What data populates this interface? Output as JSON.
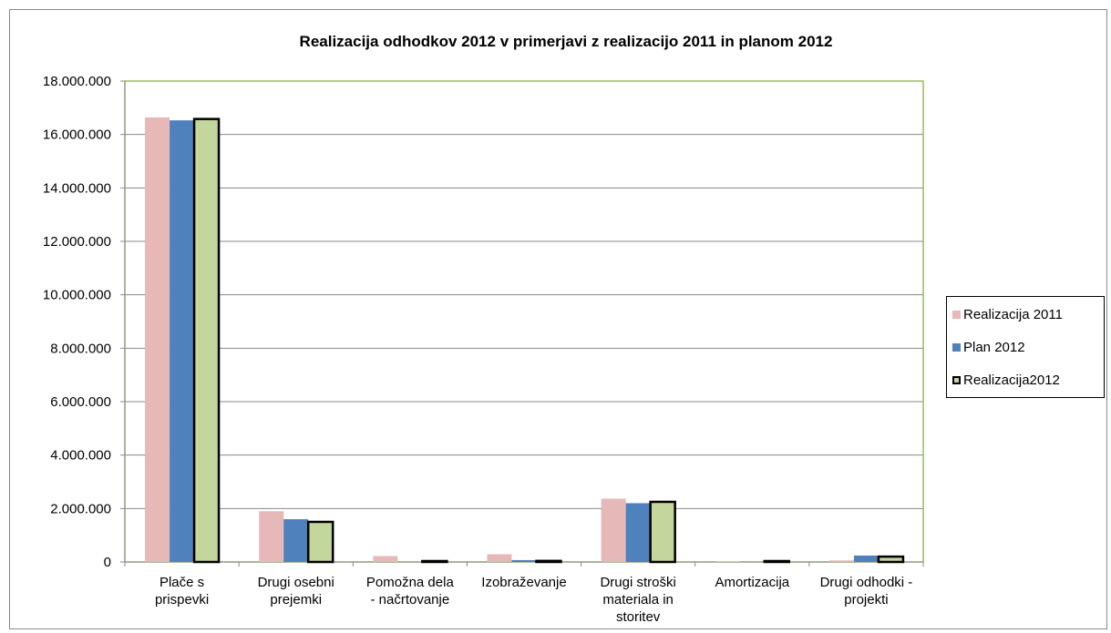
{
  "chart_data": {
    "type": "bar",
    "title": "Realizacija odhodkov 2012 v primerjavi z realizacijo 2011 in planom 2012",
    "xlabel": "",
    "ylabel": "",
    "ylim": [
      0,
      18000000
    ],
    "yticks": [
      0,
      2000000,
      4000000,
      6000000,
      8000000,
      10000000,
      12000000,
      14000000,
      16000000,
      18000000
    ],
    "ytick_labels": [
      "0",
      "2.000.000",
      "4.000.000",
      "6.000.000",
      "8.000.000",
      "10.000.000",
      "12.000.000",
      "14.000.000",
      "16.000.000",
      "18.000.000"
    ],
    "grid": true,
    "legend_position": "right",
    "categories": [
      [
        "Plače s",
        "prispevki"
      ],
      [
        "Drugi osebni",
        "prejemki"
      ],
      [
        "Pomožna dela",
        "- načrtovanje"
      ],
      [
        "Izobraževanje"
      ],
      [
        "Drugi stroški",
        "materiala in",
        "storitev"
      ],
      [
        "Amortizacija"
      ],
      [
        "Drugi odhodki -",
        "projekti"
      ]
    ],
    "series": [
      {
        "name": "Realizacija 2011",
        "color": "#e6b9b8",
        "outline": false,
        "values": [
          16640000,
          1900000,
          220000,
          290000,
          2370000,
          20000,
          60000
        ]
      },
      {
        "name": "Plan 2012",
        "color": "#4f81bd",
        "outline": false,
        "values": [
          16530000,
          1600000,
          0,
          70000,
          2200000,
          0,
          240000
        ]
      },
      {
        "name": "Realizacija2012",
        "color": "#c3d69b",
        "outline": true,
        "values": [
          16580000,
          1500000,
          10000,
          40000,
          2250000,
          10000,
          200000
        ]
      }
    ]
  }
}
